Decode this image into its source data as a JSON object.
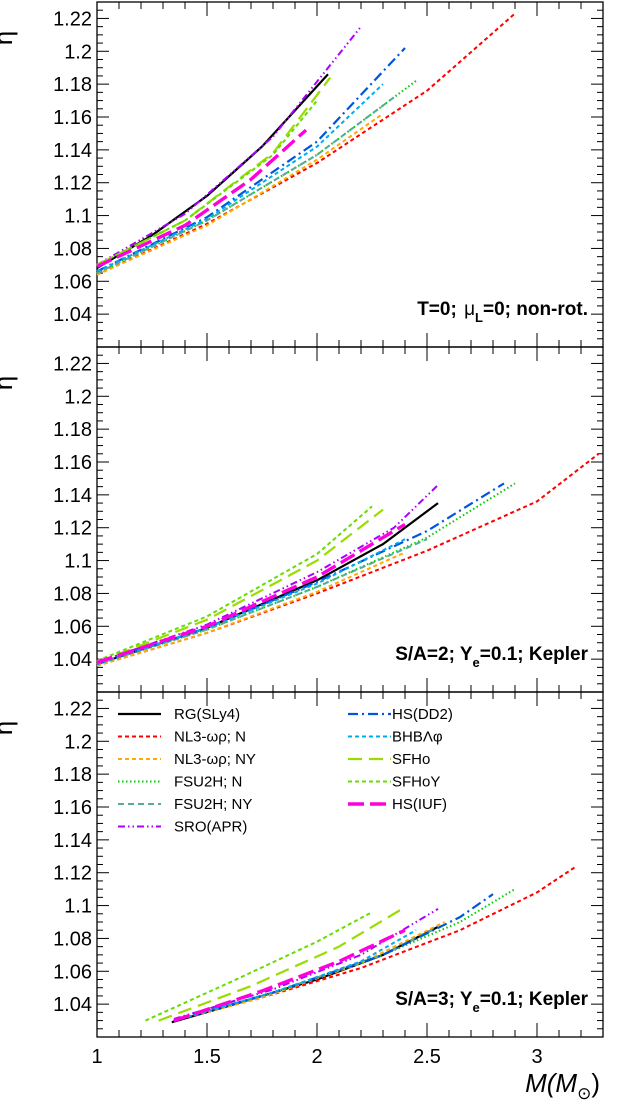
{
  "chart_data": [
    {
      "type": "line",
      "panel_label": "T=0; μ_L=0; non-rot.",
      "label_parts": {
        "pre": "T=0; ",
        "sym": "μ",
        "sub": "L",
        "post": "=0; non-rot."
      },
      "ylabel": "η",
      "xlim": [
        1.0,
        3.3
      ],
      "ylim": [
        1.02,
        1.23
      ],
      "yticks": [
        "1.04",
        "1.06",
        "1.08",
        "1.1",
        "1.12",
        "1.14",
        "1.16",
        "1.18",
        "1.2",
        "1.22"
      ],
      "series": [
        {
          "id": "RG(SLy4)",
          "x": [
            1.0,
            1.25,
            1.5,
            1.75,
            2.05
          ],
          "y": [
            1.068,
            1.088,
            1.112,
            1.142,
            1.186
          ]
        },
        {
          "id": "NL3-ωρ; N",
          "x": [
            1.0,
            1.5,
            2.0,
            2.5,
            2.9
          ],
          "y": [
            1.064,
            1.095,
            1.132,
            1.176,
            1.223
          ]
        },
        {
          "id": "NL3-ωρ; NY",
          "x": [
            1.0,
            1.5,
            2.0,
            2.3
          ],
          "y": [
            1.064,
            1.094,
            1.134,
            1.162
          ]
        },
        {
          "id": "FSU2H; N",
          "x": [
            1.0,
            1.5,
            2.0,
            2.45
          ],
          "y": [
            1.065,
            1.097,
            1.137,
            1.182
          ]
        },
        {
          "id": "FSU2H; NY",
          "x": [
            1.0,
            1.5,
            2.0,
            2.35
          ],
          "y": [
            1.065,
            1.097,
            1.137,
            1.172
          ]
        },
        {
          "id": "SRO(APR)",
          "x": [
            1.0,
            1.4,
            1.8,
            2.2
          ],
          "y": [
            1.07,
            1.101,
            1.148,
            1.215
          ]
        },
        {
          "id": "HS(DD2)",
          "x": [
            1.0,
            1.5,
            2.0,
            2.4
          ],
          "y": [
            1.066,
            1.099,
            1.145,
            1.202
          ]
        },
        {
          "id": "BHBΛφ",
          "x": [
            1.0,
            1.5,
            2.0,
            2.3
          ],
          "y": [
            1.066,
            1.098,
            1.142,
            1.18
          ]
        },
        {
          "id": "SFHo",
          "x": [
            1.0,
            1.4,
            1.8,
            2.06
          ],
          "y": [
            1.07,
            1.097,
            1.138,
            1.184
          ]
        },
        {
          "id": "SFHoY",
          "x": [
            1.0,
            1.4,
            1.8,
            2.0
          ],
          "y": [
            1.07,
            1.097,
            1.137,
            1.17
          ]
        },
        {
          "id": "HS(IUF)",
          "x": [
            1.0,
            1.4,
            1.7,
            1.95
          ],
          "y": [
            1.069,
            1.094,
            1.122,
            1.152
          ]
        }
      ]
    },
    {
      "type": "line",
      "panel_label": "S/A=2; Y_e=0.1; Kepler",
      "label_parts": {
        "pre": "S/A=2; Y",
        "sub": "e",
        "post": "=0.1; Kepler"
      },
      "ylabel": "η",
      "xlim": [
        1.0,
        3.3
      ],
      "ylim": [
        1.02,
        1.23
      ],
      "yticks": [
        "1.04",
        "1.06",
        "1.08",
        "1.1",
        "1.12",
        "1.14",
        "1.16",
        "1.18",
        "1.2",
        "1.22"
      ],
      "series": [
        {
          "id": "RG(SLy4)",
          "x": [
            1.0,
            1.5,
            2.0,
            2.3,
            2.55
          ],
          "y": [
            1.037,
            1.059,
            1.088,
            1.11,
            1.135
          ]
        },
        {
          "id": "NL3-ωρ; N",
          "x": [
            1.0,
            1.5,
            2.0,
            2.5,
            3.0,
            3.28
          ],
          "y": [
            1.036,
            1.056,
            1.08,
            1.106,
            1.136,
            1.165
          ]
        },
        {
          "id": "NL3-ωρ; NY",
          "x": [
            1.0,
            1.5,
            2.0,
            2.4
          ],
          "y": [
            1.036,
            1.056,
            1.081,
            1.105
          ]
        },
        {
          "id": "FSU2H; N",
          "x": [
            1.0,
            1.5,
            2.0,
            2.5,
            2.9
          ],
          "y": [
            1.037,
            1.058,
            1.084,
            1.114,
            1.147
          ]
        },
        {
          "id": "FSU2H; NY",
          "x": [
            1.0,
            1.5,
            2.0,
            2.5
          ],
          "y": [
            1.037,
            1.058,
            1.084,
            1.113
          ]
        },
        {
          "id": "SRO(APR)",
          "x": [
            1.0,
            1.5,
            2.0,
            2.35,
            2.55
          ],
          "y": [
            1.038,
            1.061,
            1.093,
            1.12,
            1.146
          ]
        },
        {
          "id": "HS(DD2)",
          "x": [
            1.0,
            1.5,
            2.0,
            2.5,
            2.85
          ],
          "y": [
            1.037,
            1.059,
            1.087,
            1.118,
            1.147
          ]
        },
        {
          "id": "BHBΛφ",
          "x": [
            1.0,
            1.5,
            2.0,
            2.4
          ],
          "y": [
            1.037,
            1.059,
            1.086,
            1.113
          ]
        },
        {
          "id": "SFHo",
          "x": [
            1.0,
            1.5,
            2.0,
            2.3
          ],
          "y": [
            1.038,
            1.064,
            1.1,
            1.131
          ]
        },
        {
          "id": "SFHoY",
          "x": [
            1.0,
            1.5,
            2.0,
            2.25
          ],
          "y": [
            1.039,
            1.066,
            1.104,
            1.133
          ]
        },
        {
          "id": "HS(IUF)",
          "x": [
            1.0,
            1.5,
            2.0,
            2.4
          ],
          "y": [
            1.038,
            1.06,
            1.09,
            1.122
          ]
        }
      ]
    },
    {
      "type": "line",
      "panel_label": "S/A=3; Y_e=0.1; Kepler",
      "label_parts": {
        "pre": "S/A=3; Y",
        "sub": "e",
        "post": "=0.1; Kepler"
      },
      "ylabel": "η",
      "xlabel_parts": {
        "main": "M(M",
        "sub": "⊙",
        "close": ")"
      },
      "xlim": [
        1.0,
        3.3
      ],
      "ylim": [
        1.02,
        1.23
      ],
      "xticks": [
        "1",
        "1.5",
        "2",
        "2.5",
        "3"
      ],
      "yticks": [
        "1.04",
        "1.06",
        "1.08",
        "1.1",
        "1.12",
        "1.14",
        "1.16",
        "1.18",
        "1.2",
        "1.22"
      ],
      "series": [
        {
          "id": "RG(SLy4)",
          "x": [
            1.34,
            1.6,
            2.0,
            2.3,
            2.55
          ],
          "y": [
            1.029,
            1.039,
            1.055,
            1.07,
            1.087
          ]
        },
        {
          "id": "NL3-ωρ; N",
          "x": [
            1.35,
            1.75,
            2.2,
            2.65,
            3.0,
            3.18
          ],
          "y": [
            1.03,
            1.044,
            1.062,
            1.085,
            1.108,
            1.124
          ]
        },
        {
          "id": "NL3-ωρ; NY",
          "x": [
            1.35,
            1.75,
            2.2,
            2.58
          ],
          "y": [
            1.03,
            1.044,
            1.065,
            1.09
          ]
        },
        {
          "id": "FSU2H; N",
          "x": [
            1.35,
            1.8,
            2.3,
            2.65,
            2.9
          ],
          "y": [
            1.03,
            1.047,
            1.07,
            1.09,
            1.11
          ]
        },
        {
          "id": "FSU2H; NY",
          "x": [
            1.35,
            1.8,
            2.3,
            2.55
          ],
          "y": [
            1.03,
            1.047,
            1.07,
            1.087
          ]
        },
        {
          "id": "SRO(APR)",
          "x": [
            1.35,
            1.8,
            2.2,
            2.55
          ],
          "y": [
            1.031,
            1.049,
            1.07,
            1.098
          ]
        },
        {
          "id": "HS(DD2)",
          "x": [
            1.35,
            1.8,
            2.3,
            2.65,
            2.8
          ],
          "y": [
            1.03,
            1.047,
            1.07,
            1.093,
            1.107
          ]
        },
        {
          "id": "BHBΛφ",
          "x": [
            1.35,
            1.8,
            2.2,
            2.45
          ],
          "y": [
            1.03,
            1.047,
            1.066,
            1.085
          ]
        },
        {
          "id": "SFHo",
          "x": [
            1.28,
            1.7,
            2.1,
            2.4
          ],
          "y": [
            1.03,
            1.051,
            1.075,
            1.099
          ]
        },
        {
          "id": "SFHoY",
          "x": [
            1.22,
            1.6,
            2.0,
            2.25
          ],
          "y": [
            1.03,
            1.053,
            1.078,
            1.096
          ]
        },
        {
          "id": "HS(IUF)",
          "x": [
            1.35,
            1.75,
            2.1,
            2.4
          ],
          "y": [
            1.03,
            1.048,
            1.066,
            1.085
          ]
        }
      ],
      "legend": {
        "columns": [
          [
            "RG(SLy4)",
            "NL3-ωρ; N",
            "NL3-ωρ; NY",
            "FSU2H; N",
            "FSU2H; NY",
            "SRO(APR)"
          ],
          [
            "HS(DD2)",
            "BHBΛφ",
            "SFHo",
            "SFHoY",
            "HS(IUF)"
          ]
        ]
      }
    }
  ],
  "styles": {
    "RG(SLy4)": {
      "color": "#000000",
      "dash": "",
      "width": 2.2
    },
    "NL3-ωρ; N": {
      "color": "#ff0000",
      "dash": "4 3",
      "width": 2
    },
    "NL3-ωρ; NY": {
      "color": "#ffaa00",
      "dash": "4 3",
      "width": 2
    },
    "FSU2H; N": {
      "color": "#00cc00",
      "dash": "1.5 2.5",
      "width": 2
    },
    "FSU2H; NY": {
      "color": "#55aa99",
      "dash": "6 4",
      "width": 2
    },
    "SRO(APR)": {
      "color": "#aa00ff",
      "dash": "7 3 1.5 3 1.5 3",
      "width": 2
    },
    "HS(DD2)": {
      "color": "#0055dd",
      "dash": "10 4 2 4",
      "width": 2.2
    },
    "BHBΛφ": {
      "color": "#00aaee",
      "dash": "4 3",
      "width": 2
    },
    "SFHo": {
      "color": "#99dd00",
      "dash": "14 7",
      "width": 2.2
    },
    "SFHoY": {
      "color": "#66dd00",
      "dash": "4 3",
      "width": 2
    },
    "HS(IUF)": {
      "color": "#ff00dd",
      "dash": "16 6",
      "width": 3.4
    }
  }
}
